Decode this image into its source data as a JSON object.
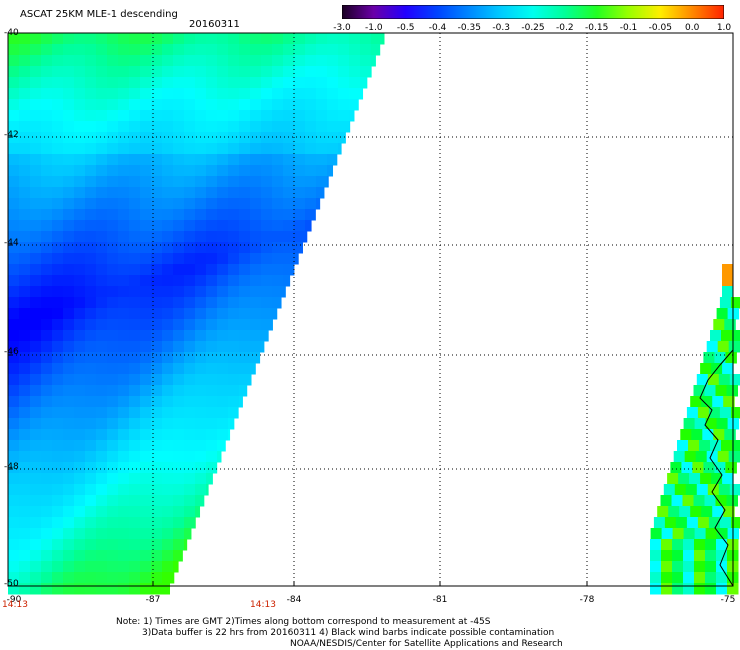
{
  "title": "ASCAT 25KM MLE-1 descending",
  "date": "20160311",
  "colorbar": {
    "labels": [
      "-3.0",
      "-1.0",
      "-0.5",
      "-0.4",
      "-0.35",
      "-0.3",
      "-0.25",
      "-0.2",
      "-0.15",
      "-0.1",
      "-0.05",
      "0.0",
      "1.0"
    ],
    "colors": [
      "#1a0022",
      "#6a00a8",
      "#2200ff",
      "#0044ff",
      "#0088ff",
      "#00ccff",
      "#00ffee",
      "#00ff99",
      "#22ff22",
      "#99ff00",
      "#ffee00",
      "#ff8800",
      "#ff2200"
    ]
  },
  "map": {
    "lat_labels": [
      "-40",
      "-42",
      "-44",
      "-46",
      "-48",
      "-50"
    ],
    "lon_labels": [
      "-90",
      "-87",
      "-84",
      "-81",
      "-78",
      "-75"
    ],
    "lat_range": [
      -50,
      -40
    ],
    "lon_range": [
      -90,
      -75
    ],
    "gridlines": true,
    "time_labels": [
      "14:13",
      "14:13"
    ]
  },
  "notes": [
    "Note: 1) Times are GMT 2)Times along bottom correspond to measurement at -45S",
    "3)Data buffer is 22 hrs from 20160311 4) Black wind barbs indicate possible contamination",
    "NOAA/NESDIS/Center for Satellite Applications and Research"
  ]
}
